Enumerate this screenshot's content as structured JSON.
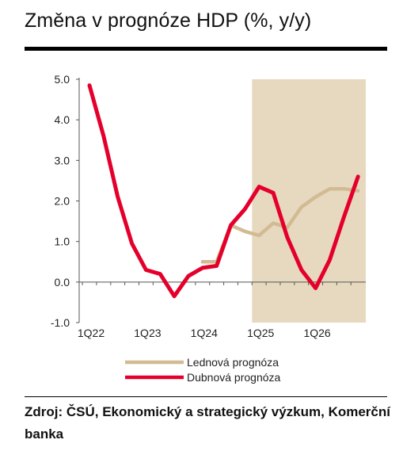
{
  "title": "Změna v prognóze HDP (%, y/y)",
  "source": "Zdroj: ČSÚ, Ekonomický a strategický výzkum, Komerční banka",
  "chart_data": {
    "type": "line",
    "title": "Změna v prognóze HDP (%, y/y)",
    "xlabel": "",
    "ylabel": "",
    "ylim": [
      -1.0,
      5.0
    ],
    "y_ticks": [
      "5.0",
      "4.0",
      "3.0",
      "2.0",
      "1.0",
      "0.0",
      "-1.0"
    ],
    "x_tick_labels": [
      "1Q22",
      "1Q23",
      "1Q24",
      "1Q25",
      "1Q26"
    ],
    "categories": [
      "1Q22",
      "2Q22",
      "3Q22",
      "4Q22",
      "1Q23",
      "2Q23",
      "3Q23",
      "4Q23",
      "1Q24",
      "2Q24",
      "3Q24",
      "4Q24",
      "1Q25",
      "2Q25",
      "3Q25",
      "4Q25",
      "1Q26",
      "2Q26",
      "3Q26",
      "4Q26"
    ],
    "shaded_region": {
      "from": "1Q25",
      "to": "4Q26",
      "color": "#e6d9bf"
    },
    "legend": {
      "placement": "bottom"
    },
    "series": [
      {
        "name": "Lednová prognóza",
        "color": "#d2bb93",
        "values": [
          null,
          null,
          null,
          null,
          null,
          null,
          null,
          null,
          0.5,
          0.5,
          1.4,
          1.25,
          1.15,
          1.45,
          1.35,
          1.85,
          2.1,
          2.3,
          2.3,
          2.25
        ]
      },
      {
        "name": "Dubnová prognóza",
        "color": "#e4002b",
        "values": [
          4.85,
          3.6,
          2.1,
          0.95,
          0.3,
          0.2,
          -0.35,
          0.15,
          0.35,
          0.4,
          1.4,
          1.8,
          2.35,
          2.2,
          1.1,
          0.3,
          -0.15,
          0.55,
          1.6,
          2.6
        ]
      }
    ]
  }
}
